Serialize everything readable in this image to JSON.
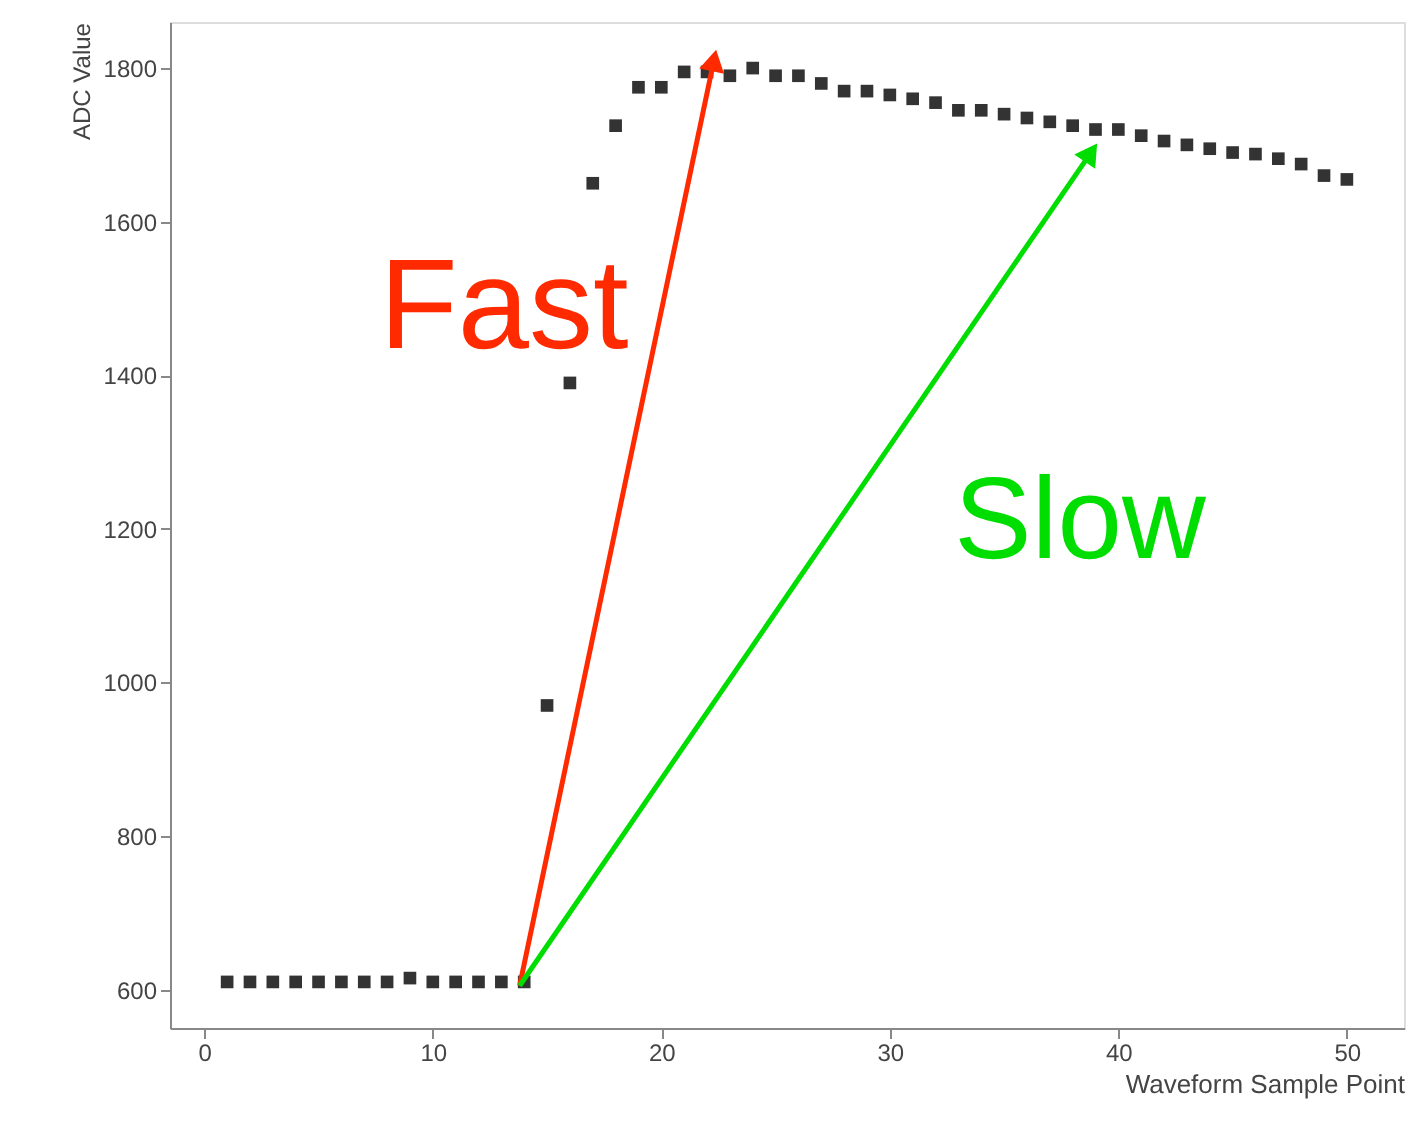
{
  "chart_data": {
    "type": "scatter",
    "xlabel": "Waveform Sample Point",
    "ylabel": "ADC Value",
    "x": [
      1,
      2,
      3,
      4,
      5,
      6,
      7,
      8,
      9,
      10,
      11,
      12,
      13,
      14,
      15,
      16,
      17,
      18,
      19,
      20,
      21,
      22,
      23,
      24,
      25,
      26,
      27,
      28,
      29,
      30,
      31,
      32,
      33,
      34,
      35,
      36,
      37,
      38,
      39,
      40,
      41,
      42,
      43,
      44,
      45,
      46,
      47,
      48,
      49,
      50
    ],
    "series": [
      {
        "color": "#333333",
        "marker": "square",
        "values": [
          610,
          610,
          610,
          610,
          610,
          610,
          610,
          610,
          615,
          610,
          610,
          610,
          610,
          610,
          970,
          1390,
          1650,
          1725,
          1775,
          1775,
          1795,
          1795,
          1790,
          1800,
          1790,
          1790,
          1780,
          1770,
          1770,
          1765,
          1760,
          1755,
          1745,
          1745,
          1740,
          1735,
          1730,
          1725,
          1720,
          1720,
          1712,
          1705,
          1700,
          1695,
          1690,
          1688,
          1682,
          1675,
          1660,
          1655
        ]
      },
      {
        "type": "line",
        "color": "#ff2a00",
        "marker": "triangle",
        "x": [
          13.8,
          22.3
        ],
        "values": [
          605,
          1810
        ]
      },
      {
        "type": "line",
        "color": "#00dd00",
        "marker": "triangle",
        "x": [
          13.8,
          38.8
        ],
        "values": [
          605,
          1690
        ]
      }
    ],
    "grid": false,
    "xlim": [
      -1.5,
      52.5
    ],
    "ylim": [
      550,
      1860
    ],
    "xticks": [
      0,
      10,
      20,
      30,
      40,
      50
    ],
    "yticks": [
      600,
      800,
      1000,
      1200,
      1400,
      1600,
      1800
    ],
    "annotations": [
      "Fast",
      "Slow"
    ]
  }
}
